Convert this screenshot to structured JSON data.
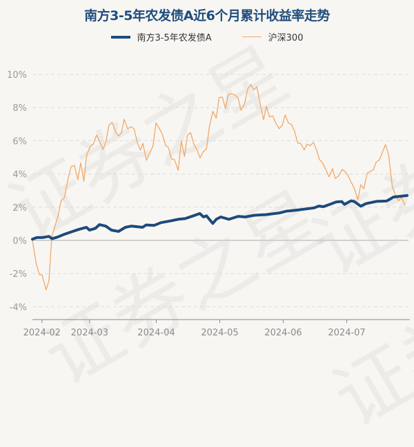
{
  "watermark": "证券之星",
  "chart_data": {
    "type": "line",
    "title": "南方3-5年农发债A近6个月累计收益率走势",
    "xlabel": "",
    "ylabel": "",
    "x_unit": "trading day index (0 = 2024-01-29)",
    "xlim": [
      0,
      118
    ],
    "ylim": [
      -4.6,
      10.5
    ],
    "yticks": [
      -4,
      -2,
      0,
      2,
      4,
      6,
      8,
      10
    ],
    "ytick_labels": [
      "-4%",
      "-2%",
      "0%",
      "2%",
      "4%",
      "6%",
      "8%",
      "10%"
    ],
    "xticks": [
      3,
      18,
      39,
      59,
      79,
      99
    ],
    "xtick_labels": [
      "2024-02",
      "2024-03",
      "2024-04",
      "2024-05",
      "2024-06",
      "2024-07"
    ],
    "grid": true,
    "legend_position": "top-center",
    "series": [
      {
        "name": "南方3-5年农发债A",
        "color": "#1c4a7c",
        "points": [
          [
            0,
            0.07
          ],
          [
            1.4,
            0.17
          ],
          [
            3.2,
            0.17
          ],
          [
            5.2,
            0.24
          ],
          [
            6.2,
            0.1
          ],
          [
            7.9,
            0.2
          ],
          [
            9.7,
            0.34
          ],
          [
            12.2,
            0.51
          ],
          [
            14.4,
            0.65
          ],
          [
            17.0,
            0.79
          ],
          [
            18.0,
            0.62
          ],
          [
            19.8,
            0.72
          ],
          [
            21.1,
            0.95
          ],
          [
            23.1,
            0.86
          ],
          [
            24.9,
            0.62
          ],
          [
            27.1,
            0.54
          ],
          [
            29.3,
            0.79
          ],
          [
            31.1,
            0.86
          ],
          [
            34.7,
            0.79
          ],
          [
            35.8,
            0.93
          ],
          [
            38.3,
            0.9
          ],
          [
            40.5,
            1.07
          ],
          [
            43.4,
            1.17
          ],
          [
            45.9,
            1.27
          ],
          [
            48.1,
            1.31
          ],
          [
            50.7,
            1.48
          ],
          [
            52.7,
            1.62
          ],
          [
            53.9,
            1.41
          ],
          [
            54.8,
            1.48
          ],
          [
            56.8,
            1.02
          ],
          [
            57.9,
            1.27
          ],
          [
            59.3,
            1.41
          ],
          [
            61.9,
            1.27
          ],
          [
            64.8,
            1.45
          ],
          [
            67.0,
            1.41
          ],
          [
            69.8,
            1.51
          ],
          [
            73.5,
            1.55
          ],
          [
            77.8,
            1.65
          ],
          [
            80.0,
            1.76
          ],
          [
            83.6,
            1.83
          ],
          [
            88.7,
            1.96
          ],
          [
            90.2,
            2.07
          ],
          [
            91.6,
            2.03
          ],
          [
            94.1,
            2.2
          ],
          [
            95.6,
            2.31
          ],
          [
            97.4,
            2.34
          ],
          [
            98.3,
            2.17
          ],
          [
            100.3,
            2.38
          ],
          [
            101.4,
            2.34
          ],
          [
            103.4,
            2.06
          ],
          [
            105.0,
            2.21
          ],
          [
            108.3,
            2.35
          ],
          [
            111.5,
            2.37
          ],
          [
            112.6,
            2.48
          ],
          [
            113.7,
            2.61
          ],
          [
            118,
            2.7
          ]
        ]
      },
      {
        "name": "沪深300",
        "color": "#f0a868",
        "points": [
          [
            0,
            0.0
          ],
          [
            1.2,
            -1.41
          ],
          [
            2.2,
            -2.07
          ],
          [
            3.0,
            -2.07
          ],
          [
            4.3,
            -2.97
          ],
          [
            5.2,
            -2.45
          ],
          [
            6.1,
            0.25
          ],
          [
            7.2,
            0.91
          ],
          [
            8.1,
            1.49
          ],
          [
            9.0,
            2.38
          ],
          [
            10.1,
            2.59
          ],
          [
            11.2,
            3.69
          ],
          [
            12.2,
            4.45
          ],
          [
            13.2,
            4.52
          ],
          [
            14.3,
            3.65
          ],
          [
            15.2,
            4.66
          ],
          [
            16.2,
            3.56
          ],
          [
            17.1,
            5.15
          ],
          [
            18.3,
            5.7
          ],
          [
            19.1,
            5.77
          ],
          [
            20.2,
            6.35
          ],
          [
            22.2,
            5.49
          ],
          [
            23.1,
            5.9
          ],
          [
            24.1,
            6.94
          ],
          [
            25.1,
            7.11
          ],
          [
            26.2,
            6.53
          ],
          [
            27.1,
            6.29
          ],
          [
            28.0,
            6.46
          ],
          [
            28.9,
            7.29
          ],
          [
            30.0,
            6.72
          ],
          [
            31.1,
            6.85
          ],
          [
            32.0,
            6.72
          ],
          [
            33.1,
            5.85
          ],
          [
            34.0,
            5.44
          ],
          [
            34.8,
            5.85
          ],
          [
            35.9,
            4.83
          ],
          [
            37.0,
            5.28
          ],
          [
            38.0,
            5.7
          ],
          [
            38.9,
            7.08
          ],
          [
            39.8,
            6.8
          ],
          [
            40.9,
            6.39
          ],
          [
            42.0,
            5.7
          ],
          [
            42.8,
            5.6
          ],
          [
            43.8,
            4.91
          ],
          [
            44.7,
            4.87
          ],
          [
            45.9,
            4.22
          ],
          [
            46.9,
            5.98
          ],
          [
            47.9,
            5.05
          ],
          [
            48.8,
            6.35
          ],
          [
            49.8,
            6.49
          ],
          [
            50.8,
            5.81
          ],
          [
            51.7,
            5.52
          ],
          [
            52.8,
            4.97
          ],
          [
            53.8,
            5.35
          ],
          [
            54.8,
            5.52
          ],
          [
            55.7,
            6.8
          ],
          [
            56.8,
            7.77
          ],
          [
            57.9,
            7.36
          ],
          [
            58.8,
            8.61
          ],
          [
            59.8,
            8.63
          ],
          [
            60.8,
            7.95
          ],
          [
            61.7,
            8.78
          ],
          [
            62.8,
            8.84
          ],
          [
            63.9,
            8.74
          ],
          [
            64.8,
            8.56
          ],
          [
            65.7,
            7.84
          ],
          [
            66.8,
            8.22
          ],
          [
            67.8,
            9.12
          ],
          [
            68.8,
            9.39
          ],
          [
            69.7,
            9.06
          ],
          [
            70.7,
            9.25
          ],
          [
            71.7,
            8.26
          ],
          [
            72.8,
            7.26
          ],
          [
            73.7,
            8.08
          ],
          [
            74.7,
            7.43
          ],
          [
            75.7,
            7.5
          ],
          [
            76.7,
            7.04
          ],
          [
            77.7,
            6.73
          ],
          [
            78.7,
            6.94
          ],
          [
            79.6,
            7.56
          ],
          [
            80.6,
            7.08
          ],
          [
            81.6,
            6.98
          ],
          [
            82.5,
            6.6
          ],
          [
            83.6,
            5.86
          ],
          [
            84.5,
            5.84
          ],
          [
            85.6,
            5.45
          ],
          [
            86.5,
            5.8
          ],
          [
            87.5,
            5.7
          ],
          [
            88.5,
            5.9
          ],
          [
            89.4,
            5.49
          ],
          [
            90.4,
            4.87
          ],
          [
            91.4,
            4.66
          ],
          [
            92.5,
            4.22
          ],
          [
            93.4,
            3.83
          ],
          [
            94.5,
            4.32
          ],
          [
            95.4,
            3.72
          ],
          [
            96.5,
            3.9
          ],
          [
            97.5,
            4.27
          ],
          [
            98.5,
            4.14
          ],
          [
            99.3,
            3.94
          ],
          [
            100.3,
            3.53
          ],
          [
            101.4,
            3.14
          ],
          [
            102.5,
            2.45
          ],
          [
            103.4,
            3.35
          ],
          [
            104.4,
            3.11
          ],
          [
            105.4,
            4.04
          ],
          [
            106.3,
            4.14
          ],
          [
            107.3,
            4.24
          ],
          [
            108.3,
            4.73
          ],
          [
            109.2,
            4.83
          ],
          [
            110.2,
            5.28
          ],
          [
            111.2,
            5.77
          ],
          [
            112.2,
            5.15
          ],
          [
            113.3,
            3.28
          ],
          [
            114.3,
            2.73
          ],
          [
            115.3,
            2.38
          ],
          [
            116.2,
            2.59
          ],
          [
            117.3,
            2.15
          ]
        ]
      }
    ]
  }
}
